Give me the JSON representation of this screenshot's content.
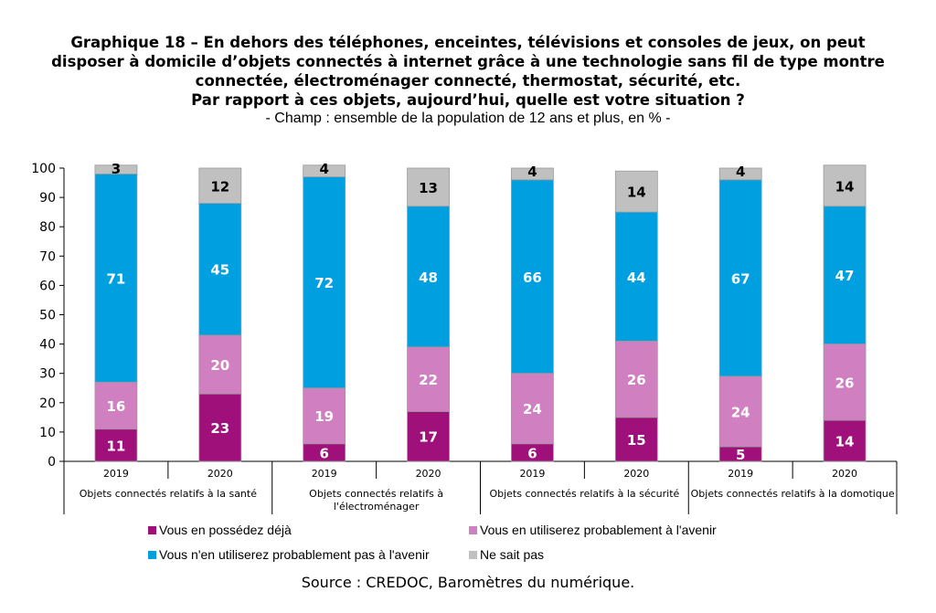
{
  "title_lines": [
    "Graphique 18 – En dehors des téléphones, enceintes, télévisions et consoles de jeux, on peut",
    "disposer à domicile d’objets connectés à internet grâce à une technologie sans fil de type montre",
    "connectée, électroménager connecté, thermostat, sécurité, etc.",
    "Par rapport à ces objets, aujourd’hui, quelle est votre situation ?"
  ],
  "subtitle": "- Champ : ensemble de la population de 12 ans et plus, en % -",
  "source": "Source : CREDOC, Baromètres du numérique.",
  "chart_data": {
    "type": "bar",
    "stacked": true,
    "ylim": [
      0,
      100
    ],
    "yticks": [
      0,
      10,
      20,
      30,
      40,
      50,
      60,
      70,
      80,
      90,
      100
    ],
    "groups": [
      {
        "label_lines": [
          "Objets connectés relatifs à la santé"
        ]
      },
      {
        "label_lines": [
          "Objets connectés relatifs à",
          "l'électroménager"
        ]
      },
      {
        "label_lines": [
          "Objets connectés relatifs à la sécurité"
        ]
      },
      {
        "label_lines": [
          "Objets connectés relatifs à la domotique"
        ]
      }
    ],
    "categories": [
      "2019",
      "2020",
      "2019",
      "2020",
      "2019",
      "2020",
      "2019",
      "2020"
    ],
    "category_group": [
      0,
      0,
      1,
      1,
      2,
      2,
      3,
      3
    ],
    "series": [
      {
        "name": "Vous en possédez déjà",
        "color": "#A0107A",
        "values": [
          11,
          23,
          6,
          17,
          6,
          15,
          5,
          14
        ]
      },
      {
        "name": "Vous en utiliserez probablement à l'avenir",
        "color": "#D080C0",
        "values": [
          16,
          20,
          19,
          22,
          24,
          26,
          24,
          26
        ]
      },
      {
        "name": "Vous n'en utiliserez probablement pas à l'avenir",
        "color": "#00A0E0",
        "values": [
          71,
          45,
          72,
          48,
          66,
          44,
          67,
          47
        ]
      },
      {
        "name": "Ne sait pas",
        "color": "#C0C0C0",
        "values": [
          3,
          12,
          4,
          13,
          4,
          14,
          4,
          14
        ]
      }
    ],
    "data_label_colors": [
      "#ffffff",
      "#ffffff",
      "#ffffff",
      "#000000"
    ],
    "grid": false,
    "legend_position": "bottom"
  }
}
